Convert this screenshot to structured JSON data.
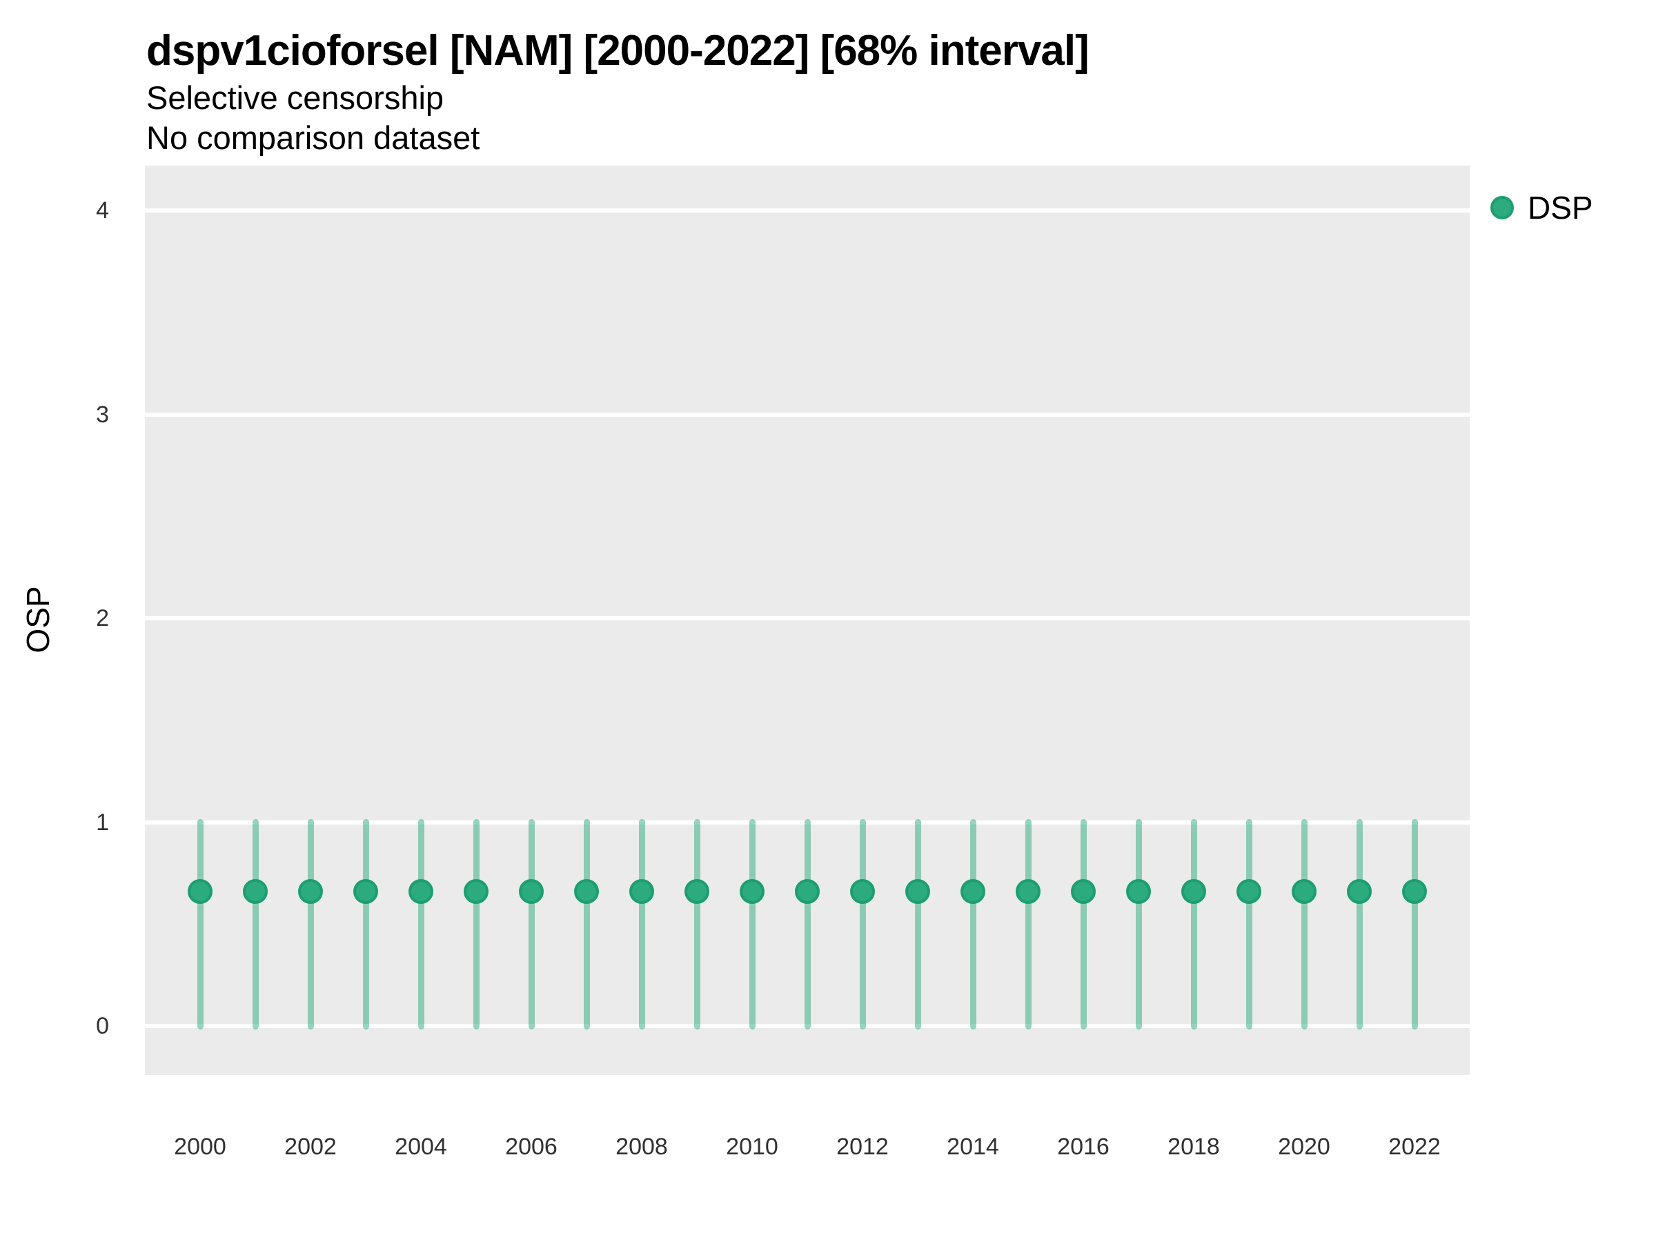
{
  "colors": {
    "page_background": "#ffffff",
    "panel_background": "#ebebeb",
    "gridline": "#ffffff",
    "point_fill": "#2bab7e",
    "point_stroke": "#1d9e70",
    "interval_rgba": "rgba(43,171,126,0.5)",
    "tick_text": "#303030",
    "title_text": "#000000"
  },
  "chart_data": {
    "type": "scatter",
    "title": "dspv1cioforsel [NAM] [2000-2022] [68% interval]",
    "subtitle": "Selective censorship",
    "note": "No comparison dataset",
    "ylabel": "OSP",
    "xlabel": "",
    "xlim": [
      1999,
      2023
    ],
    "ylim": [
      -0.24,
      4.22
    ],
    "yticks": [
      0,
      1,
      2,
      3,
      4
    ],
    "xticks": [
      2000,
      2002,
      2004,
      2006,
      2008,
      2010,
      2012,
      2014,
      2016,
      2018,
      2020,
      2022
    ],
    "grid": {
      "horizontal_major": true,
      "minor": false,
      "panel_background": "#ebebeb",
      "gridline_color": "#ffffff"
    },
    "legend": {
      "position": "top-right",
      "entries": [
        {
          "label": "DSP",
          "swatch_fill": "#2bab7e",
          "swatch_stroke": "#1d9e70"
        }
      ]
    },
    "interval_label": "68% interval",
    "series": [
      {
        "name": "DSP",
        "marker": "circle",
        "point_fill": "#2bab7e",
        "point_stroke": "#1d9e70",
        "interval_color": "rgba(43,171,126,0.5)",
        "x": [
          2000,
          2001,
          2002,
          2003,
          2004,
          2005,
          2006,
          2007,
          2008,
          2009,
          2010,
          2011,
          2012,
          2013,
          2014,
          2015,
          2016,
          2017,
          2018,
          2019,
          2020,
          2021,
          2022
        ],
        "y": [
          0.66,
          0.66,
          0.66,
          0.66,
          0.66,
          0.66,
          0.66,
          0.66,
          0.66,
          0.66,
          0.66,
          0.66,
          0.66,
          0.66,
          0.66,
          0.66,
          0.66,
          0.66,
          0.66,
          0.66,
          0.66,
          0.66,
          0.66
        ],
        "ymin": [
          0,
          0,
          0,
          0,
          0,
          0,
          0,
          0,
          0,
          0,
          0,
          0,
          0,
          0,
          0,
          0,
          0,
          0,
          0,
          0,
          0,
          0,
          0
        ],
        "ymax": [
          1,
          1,
          1,
          1,
          1,
          1,
          1,
          1,
          1,
          1,
          1,
          1,
          1,
          1,
          1,
          1,
          1,
          1,
          1,
          1,
          1,
          1,
          1
        ]
      }
    ]
  }
}
